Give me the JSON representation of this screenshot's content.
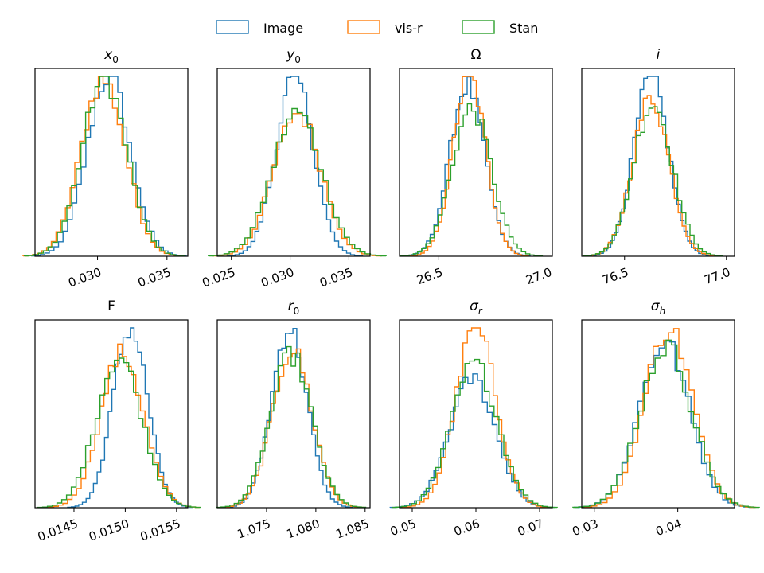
{
  "chart_data": {
    "type": "histogram-grid",
    "legend": {
      "placement": "top-center",
      "entries": [
        {
          "label": "Image",
          "color": "#1f77b4"
        },
        {
          "label": "vis-r",
          "color": "#ff7f0e"
        },
        {
          "label": "Stan",
          "color": "#2ca02c"
        }
      ]
    },
    "panels": [
      {
        "title": "x",
        "subscript": "0",
        "xlim": [
          0.0255,
          0.0365
        ],
        "ticks": [
          0.03,
          0.035
        ],
        "tick_labels": [
          "0.030",
          "0.035"
        ],
        "series": [
          {
            "name": "Image",
            "mean": 0.0308,
            "sd": 0.00155,
            "peak": 1.0
          },
          {
            "name": "vis-r",
            "mean": 0.0304,
            "sd": 0.0016,
            "peak": 0.98
          },
          {
            "name": "Stan",
            "mean": 0.0305,
            "sd": 0.0016,
            "peak": 0.99
          }
        ]
      },
      {
        "title": "y",
        "subscript": "0",
        "xlim": [
          0.0238,
          0.0368
        ],
        "ticks": [
          0.025,
          0.03,
          0.035
        ],
        "tick_labels": [
          "0.025",
          "0.030",
          "0.035"
        ],
        "series": [
          {
            "name": "Image",
            "mean": 0.0304,
            "sd": 0.0016,
            "peak": 1.0
          },
          {
            "name": "vis-r",
            "mean": 0.0306,
            "sd": 0.002,
            "peak": 0.8
          },
          {
            "name": "Stan",
            "mean": 0.0306,
            "sd": 0.0021,
            "peak": 0.8
          }
        ]
      },
      {
        "title": "Ω",
        "subscript": "",
        "xlim": [
          26.32,
          27.02
        ],
        "ticks": [
          26.5,
          27.0
        ],
        "tick_labels": [
          "26.5",
          "27.0"
        ],
        "series": [
          {
            "name": "Image",
            "mean": 26.63,
            "sd": 0.08,
            "peak": 0.95
          },
          {
            "name": "vis-r",
            "mean": 26.64,
            "sd": 0.075,
            "peak": 1.0
          },
          {
            "name": "Stan",
            "mean": 26.65,
            "sd": 0.09,
            "peak": 0.82
          }
        ]
      },
      {
        "title": "i",
        "subscript": "",
        "xlim": [
          76.29,
          77.04
        ],
        "ticks": [
          76.5,
          77.0
        ],
        "tick_labels": [
          "76.5",
          "77.0"
        ],
        "series": [
          {
            "name": "Image",
            "mean": 76.63,
            "sd": 0.085,
            "peak": 1.0
          },
          {
            "name": "vis-r",
            "mean": 76.63,
            "sd": 0.09,
            "peak": 0.88
          },
          {
            "name": "Stan",
            "mean": 76.64,
            "sd": 0.095,
            "peak": 0.85
          }
        ]
      },
      {
        "title": "F",
        "subscript": "",
        "xlim": [
          0.01412,
          0.01561
        ],
        "ticks": [
          0.0145,
          0.015,
          0.0155
        ],
        "tick_labels": [
          "0.0145",
          "0.0150",
          "0.0155"
        ],
        "series": [
          {
            "name": "Image",
            "mean": 0.01505,
            "sd": 0.00017,
            "peak": 1.0
          },
          {
            "name": "vis-r",
            "mean": 0.01497,
            "sd": 0.00021,
            "peak": 0.86
          },
          {
            "name": "Stan",
            "mean": 0.01494,
            "sd": 0.00022,
            "peak": 0.84
          }
        ]
      },
      {
        "title": "r",
        "subscript": "0",
        "xlim": [
          1.07,
          1.0855
        ],
        "ticks": [
          1.075,
          1.08,
          1.085
        ],
        "tick_labels": [
          "1.075",
          "1.080",
          "1.085"
        ],
        "series": [
          {
            "name": "Image",
            "mean": 1.0773,
            "sd": 0.0018,
            "peak": 1.0
          },
          {
            "name": "vis-r",
            "mean": 1.0776,
            "sd": 0.002,
            "peak": 0.88
          },
          {
            "name": "Stan",
            "mean": 1.0775,
            "sd": 0.0021,
            "peak": 0.85
          }
        ]
      },
      {
        "title": "σ",
        "subscript": "r",
        "xlim": [
          0.048,
          0.072
        ],
        "ticks": [
          0.05,
          0.06,
          0.07
        ],
        "tick_labels": [
          "0.05",
          "0.06",
          "0.07"
        ],
        "series": [
          {
            "name": "Image",
            "mean": 0.0595,
            "sd": 0.0036,
            "peak": 0.72
          },
          {
            "name": "vis-r",
            "mean": 0.06,
            "sd": 0.0032,
            "peak": 1.0
          },
          {
            "name": "Stan",
            "mean": 0.0598,
            "sd": 0.0036,
            "peak": 0.8
          }
        ]
      },
      {
        "title": "σ",
        "subscript": "h",
        "xlim": [
          0.0285,
          0.0468
        ],
        "ticks": [
          0.03,
          0.04
        ],
        "tick_labels": [
          "0.03",
          "0.04"
        ],
        "series": [
          {
            "name": "Image",
            "mean": 0.0384,
            "sd": 0.003,
            "peak": 0.92
          },
          {
            "name": "vis-r",
            "mean": 0.0389,
            "sd": 0.0029,
            "peak": 1.0
          },
          {
            "name": "Stan",
            "mean": 0.0386,
            "sd": 0.0031,
            "peak": 0.9
          }
        ]
      }
    ]
  }
}
